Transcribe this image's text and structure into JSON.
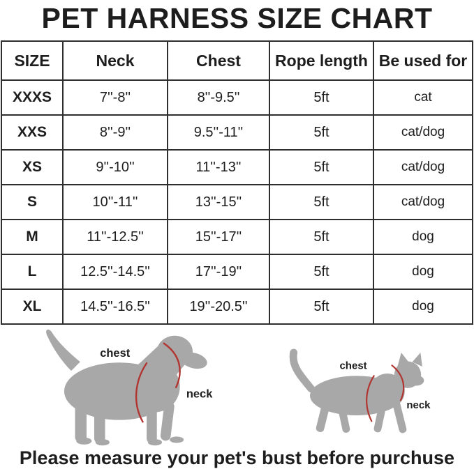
{
  "title": "PET HARNESS SIZE CHART",
  "table": {
    "headers": [
      "SIZE",
      "Neck",
      "Chest",
      "Rope length",
      "Be used for"
    ],
    "rows": [
      [
        "XXXS",
        "7''-8''",
        "8''-9.5''",
        "5ft",
        "cat"
      ],
      [
        "XXS",
        "8''-9''",
        "9.5''-11''",
        "5ft",
        "cat/dog"
      ],
      [
        "XS",
        "9''-10''",
        "11''-13''",
        "5ft",
        "cat/dog"
      ],
      [
        "S",
        "10''-11''",
        "13''-15''",
        "5ft",
        "cat/dog"
      ],
      [
        "M",
        "11''-12.5''",
        "15''-17''",
        "5ft",
        "dog"
      ],
      [
        "L",
        "12.5''-14.5''",
        "17''-19''",
        "5ft",
        "dog"
      ],
      [
        "XL",
        "14.5''-16.5''",
        "19''-20.5''",
        "5ft",
        "dog"
      ]
    ]
  },
  "diagrams": {
    "dog": {
      "chest_label": "chest",
      "neck_label": "neck"
    },
    "cat": {
      "chest_label": "chest",
      "neck_label": "neck"
    }
  },
  "footer": "Please measure your pet's bust before purchuse",
  "colors": {
    "silhouette_gray": "#a8a8a8",
    "harness_red": "#b23430",
    "text_dark": "#1d1d1d",
    "border_dark": "#2e2e2e"
  }
}
